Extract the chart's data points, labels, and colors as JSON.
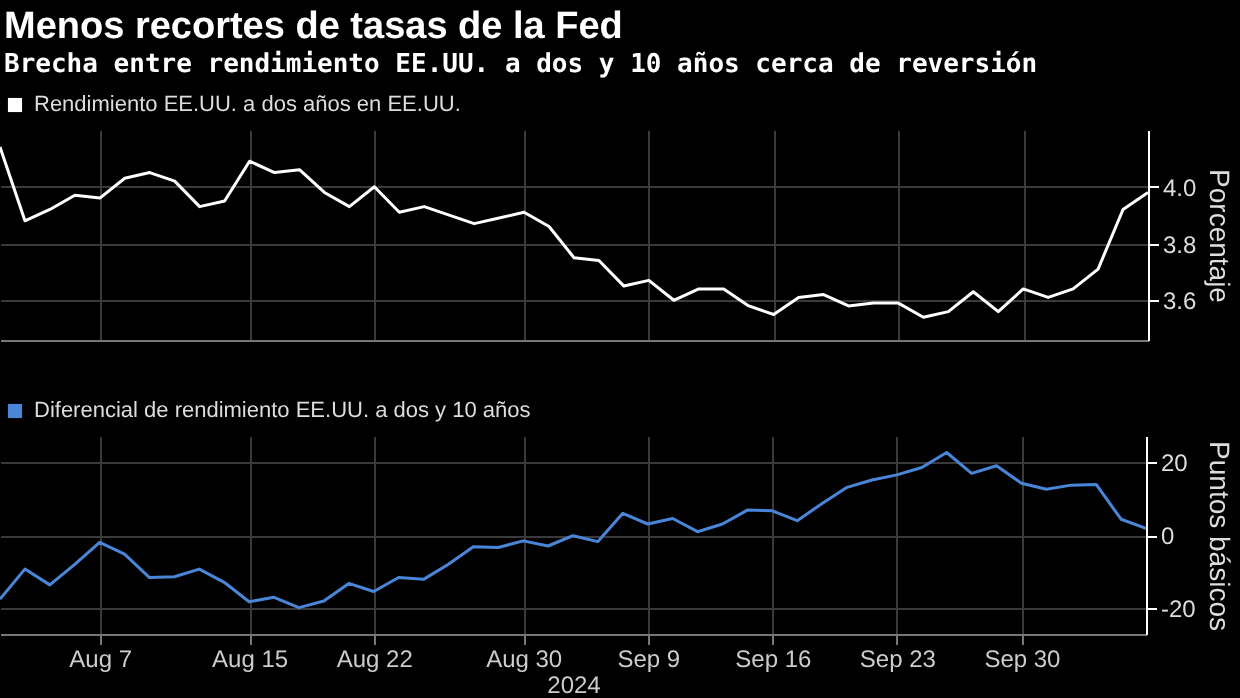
{
  "chart_data": [
    {
      "type": "line",
      "title": "Menos recortes de tasas de la Fed",
      "subtitle": "Brecha entre rendimiento EE.UU. a dos y 10 años cerca de reversión",
      "ylabel": "Porcentaje",
      "categories": [
        null,
        null,
        null,
        null,
        null,
        null,
        null,
        null,
        null,
        null,
        null,
        null,
        null,
        null,
        null,
        null,
        null,
        null,
        null,
        null,
        null,
        null,
        null,
        null,
        null,
        null,
        null,
        null,
        null,
        null,
        null,
        null,
        null,
        null,
        null,
        null,
        null,
        null,
        null,
        null,
        null,
        null,
        null,
        null,
        null,
        null,
        null
      ],
      "series": [
        {
          "name": "Rendimiento EE.UU. a dos años en EE.UU.",
          "color": "#ffffff",
          "values": [
            4.14,
            3.88,
            3.92,
            3.97,
            3.96,
            4.03,
            4.05,
            4.02,
            3.93,
            3.95,
            4.09,
            4.05,
            4.06,
            3.98,
            3.93,
            4.0,
            3.91,
            3.93,
            3.9,
            3.87,
            3.89,
            3.91,
            3.86,
            3.75,
            3.74,
            3.65,
            3.67,
            3.6,
            3.64,
            3.64,
            3.58,
            3.55,
            3.61,
            3.62,
            3.58,
            3.59,
            3.59,
            3.54,
            3.56,
            3.63,
            3.56,
            3.64,
            3.61,
            3.64,
            3.71,
            3.92,
            3.98
          ]
        }
      ],
      "ylim": [
        3.46,
        4.2
      ],
      "yticks": [
        {
          "value": 3.6,
          "label": "3.6"
        },
        {
          "value": 3.8,
          "label": "3.8"
        },
        {
          "value": 4.0,
          "label": "4.0"
        }
      ],
      "grid": true,
      "legend": "top left",
      "tick_labels": "y"
    },
    {
      "type": "line",
      "xlabel": "2024",
      "ylabel": "Puntos básicos",
      "categories": [
        null,
        null,
        null,
        null,
        "Aug 7",
        null,
        null,
        null,
        null,
        null,
        "Aug 15",
        null,
        null,
        null,
        null,
        "Aug 22",
        null,
        null,
        null,
        null,
        null,
        "Aug 30",
        null,
        null,
        null,
        null,
        "Sep 9",
        null,
        null,
        null,
        null,
        "Sep 16",
        null,
        null,
        null,
        null,
        "Sep 23",
        null,
        null,
        null,
        null,
        "Sep 30",
        null,
        null,
        null,
        null,
        null
      ],
      "series": [
        {
          "name": "Diferencial de rendimiento EE.UU. a dos y 10 años",
          "color": "#4a86d8",
          "values": [
            -17.5,
            -9.3,
            -13.6,
            -8.0,
            -2.0,
            -5.2,
            -11.6,
            -11.4,
            -9.3,
            -12.9,
            -18.2,
            -17.0,
            -19.8,
            -18.0,
            -13.2,
            -15.4,
            -11.6,
            -12.1,
            -8.0,
            -3.2,
            -3.4,
            -1.6,
            -3.0,
            -0.2,
            -1.8,
            5.9,
            3.0,
            4.5,
            0.9,
            3.0,
            6.8,
            6.6,
            3.9,
            8.6,
            13.0,
            15.0,
            16.4,
            18.4,
            22.5,
            16.8,
            18.9,
            14.1,
            12.5,
            13.6,
            13.8,
            4.3,
            1.8
          ]
        }
      ],
      "ylim": [
        -27,
        27
      ],
      "yticks": [
        {
          "value": -20,
          "label": "-20"
        },
        0,
        20
      ],
      "grid": true,
      "legend": "top left"
    }
  ]
}
